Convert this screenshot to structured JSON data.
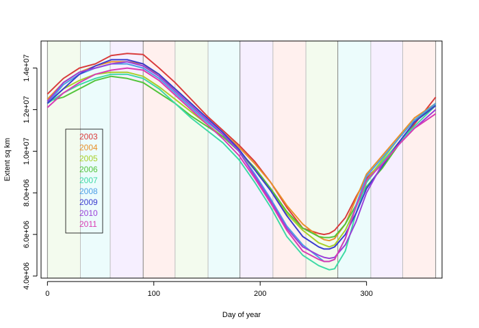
{
  "chart_data": {
    "type": "line",
    "title": "",
    "xlabel": "Day of year",
    "ylabel": "Extent sq km",
    "xlim": [
      -6,
      371
    ],
    "ylim": [
      3900000,
      15300000
    ],
    "x_ticks": [
      0,
      100,
      200,
      300
    ],
    "x_tick_labels": [
      "0",
      "100",
      "200",
      "300"
    ],
    "y_ticks": [
      4000000,
      6000000,
      8000000,
      10000000,
      12000000,
      14000000
    ],
    "y_tick_labels": [
      "4.0e+06",
      "6.0e+06",
      "8.0e+06",
      "1.0e+07",
      "1.2e+07",
      "1.4e+07"
    ],
    "legend_position": "left",
    "month_bands": [
      {
        "start": 0,
        "end": 31,
        "color": "#f3fbee"
      },
      {
        "start": 31,
        "end": 59,
        "color": "#ecfcfc"
      },
      {
        "start": 59,
        "end": 90,
        "color": "#f6efff"
      },
      {
        "start": 90,
        "end": 120,
        "color": "#fff0ee"
      },
      {
        "start": 120,
        "end": 151,
        "color": "#f3fbee"
      },
      {
        "start": 151,
        "end": 181,
        "color": "#ecfcfc"
      },
      {
        "start": 181,
        "end": 212,
        "color": "#f6efff"
      },
      {
        "start": 212,
        "end": 243,
        "color": "#fff0ee"
      },
      {
        "start": 243,
        "end": 273,
        "color": "#f3fbee"
      },
      {
        "start": 273,
        "end": 304,
        "color": "#ecfcfc"
      },
      {
        "start": 304,
        "end": 334,
        "color": "#f6efff"
      },
      {
        "start": 334,
        "end": 365,
        "color": "#fff0ee"
      }
    ],
    "x": [
      0,
      15,
      30,
      45,
      60,
      75,
      90,
      105,
      120,
      135,
      150,
      165,
      180,
      195,
      210,
      225,
      240,
      255,
      260,
      265,
      270,
      280,
      290,
      300,
      315,
      330,
      345,
      365
    ],
    "series": [
      {
        "name": "2003",
        "color": "#d93b3b",
        "values": [
          12750000,
          13500000,
          14000000,
          14200000,
          14600000,
          14700000,
          14650000,
          14000000,
          13300000,
          12500000,
          11700000,
          11000000,
          10300000,
          9500000,
          8500000,
          7300000,
          6300000,
          6050000,
          6000000,
          6050000,
          6200000,
          6800000,
          7800000,
          8700000,
          9500000,
          10400000,
          11300000,
          12600000
        ]
      },
      {
        "name": "2004",
        "color": "#e8902a",
        "values": [
          12500000,
          13300000,
          13800000,
          14100000,
          14300000,
          14300000,
          14200000,
          13600000,
          13000000,
          12300000,
          11600000,
          10900000,
          10200000,
          9400000,
          8500000,
          7400000,
          6500000,
          5900000,
          5750000,
          5700000,
          5800000,
          6500000,
          7700000,
          8900000,
          9800000,
          10700000,
          11600000,
          12300000
        ]
      },
      {
        "name": "2005",
        "color": "#a8cf28",
        "values": [
          12300000,
          13000000,
          13400000,
          13700000,
          13800000,
          13800000,
          13600000,
          13100000,
          12500000,
          11900000,
          11300000,
          10700000,
          10000000,
          9100000,
          8100000,
          7000000,
          6200000,
          5600000,
          5500000,
          5400000,
          5500000,
          6200000,
          7300000,
          8600000,
          9600000,
          10600000,
          11500000,
          12200000
        ]
      },
      {
        "name": "2006",
        "color": "#52c43a",
        "values": [
          12400000,
          12600000,
          13000000,
          13400000,
          13600000,
          13500000,
          13300000,
          12800000,
          12300000,
          11700000,
          11200000,
          10700000,
          10000000,
          9200000,
          8200000,
          7100000,
          6300000,
          5900000,
          5850000,
          5850000,
          5900000,
          6500000,
          7400000,
          8300000,
          9200000,
          10300000,
          11400000,
          12300000
        ]
      },
      {
        "name": "2007",
        "color": "#3dd9a5",
        "values": [
          12300000,
          12800000,
          13200000,
          13500000,
          13700000,
          13700000,
          13500000,
          13000000,
          12300000,
          11600000,
          11000000,
          10400000,
          9600000,
          8500000,
          7300000,
          5900000,
          5000000,
          4500000,
          4400000,
          4300000,
          4350000,
          5200000,
          7000000,
          8500000,
          9500000,
          10400000,
          11200000,
          12200000
        ]
      },
      {
        "name": "2008",
        "color": "#4c9ee6",
        "values": [
          12300000,
          13200000,
          13700000,
          14000000,
          14200000,
          14200000,
          14000000,
          13500000,
          12800000,
          12100000,
          11400000,
          10800000,
          10000000,
          8900000,
          7700000,
          6400000,
          5500000,
          4900000,
          4700000,
          4700000,
          4800000,
          5800000,
          7400000,
          8800000,
          9700000,
          10600000,
          11500000,
          12300000
        ]
      },
      {
        "name": "2009",
        "color": "#3a3acf",
        "values": [
          12300000,
          13000000,
          13700000,
          14100000,
          14400000,
          14400000,
          14200000,
          13700000,
          13000000,
          12300000,
          11600000,
          10900000,
          10100000,
          9100000,
          8100000,
          6900000,
          5900000,
          5400000,
          5300000,
          5300000,
          5400000,
          6000000,
          7000000,
          8200000,
          9300000,
          10400000,
          11400000,
          12200000
        ]
      },
      {
        "name": "2010",
        "color": "#9a3fd9",
        "values": [
          12400000,
          13300000,
          13800000,
          14000000,
          14200000,
          14300000,
          14100000,
          13600000,
          12900000,
          12200000,
          11500000,
          10800000,
          10000000,
          8800000,
          7600000,
          6300000,
          5400000,
          5000000,
          4900000,
          4850000,
          4900000,
          5500000,
          6600000,
          8000000,
          9400000,
          10300000,
          11100000,
          12000000
        ]
      },
      {
        "name": "2011",
        "color": "#d93bb3",
        "values": [
          12100000,
          12800000,
          13300000,
          13700000,
          13900000,
          14000000,
          13900000,
          13400000,
          12700000,
          12000000,
          11300000,
          10600000,
          9800000,
          8700000,
          7500000,
          6200000,
          5200000,
          4800000,
          4700000,
          4700000,
          4800000,
          5800000,
          7300000,
          8600000,
          9400000,
          10300000,
          11100000,
          11800000
        ]
      }
    ]
  }
}
